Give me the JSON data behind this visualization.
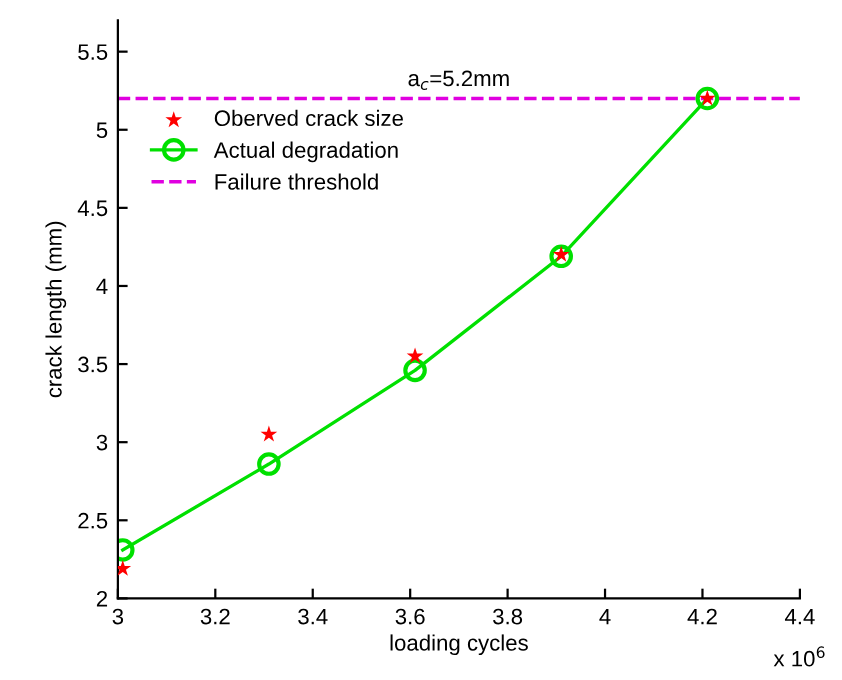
{
  "chart_data": {
    "type": "line",
    "xlabel": "loading cycles",
    "ylabel": "crack length (mm)",
    "x": [
      3.01,
      3.31,
      3.61,
      3.91,
      4.21
    ],
    "series": [
      {
        "name": "Oberved crack size",
        "type": "scatter",
        "color": "#ff0000",
        "marker": "star",
        "values": [
          2.19,
          3.05,
          3.55,
          4.2,
          5.2
        ]
      },
      {
        "name": "Actual degradation",
        "color": "#00e000",
        "marker": "circle",
        "values": [
          2.31,
          2.86,
          3.46,
          4.19,
          5.2
        ]
      }
    ],
    "ref_lines": [
      {
        "axis": "y",
        "value": 5.2,
        "label": "Failure threshold",
        "color": "#e000e0",
        "line_style": "dashed"
      }
    ],
    "annotations": [
      {
        "text": "a$_{c}$=5.2mm",
        "x": 3.7,
        "y": 5.2
      },
      "x 10$^{6}$"
    ],
    "xlim": [
      3,
      4.4
    ],
    "xticks": [
      3,
      3.2,
      3.4,
      3.6,
      3.8,
      4,
      4.2,
      4.4
    ],
    "ylim": [
      2,
      5.7
    ],
    "yticks": [
      2,
      2.5,
      3,
      3.5,
      4,
      4.5,
      5,
      5.5
    ],
    "grid": false,
    "legend": "top left"
  }
}
